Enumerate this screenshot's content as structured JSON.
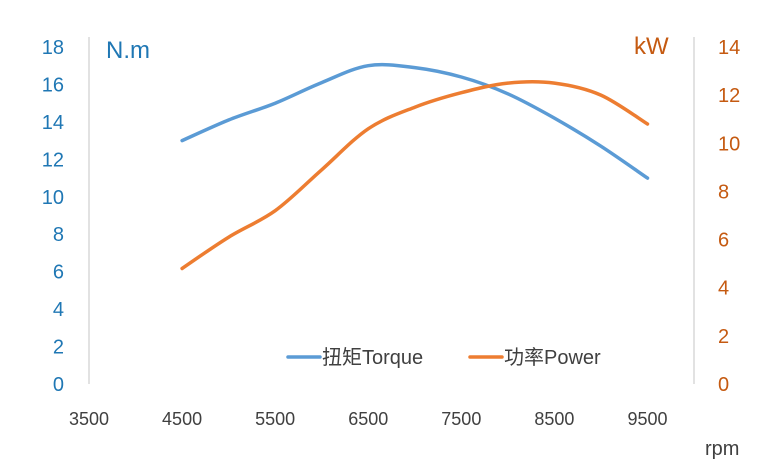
{
  "chart_data": {
    "type": "line",
    "x": [
      4500,
      5000,
      5500,
      6000,
      6500,
      7000,
      7500,
      8000,
      8500,
      9000,
      9500
    ],
    "xlim": [
      3500,
      10000
    ],
    "x_ticks": [
      3500,
      4500,
      5500,
      6500,
      7500,
      8500,
      9500
    ],
    "xlabel": "rpm",
    "y_left": {
      "label": "N.m",
      "ylim": [
        0,
        18
      ],
      "ticks": [
        0,
        2,
        4,
        6,
        8,
        10,
        12,
        14,
        16,
        18
      ],
      "color": "#1f77b4"
    },
    "y_right": {
      "label": "kW",
      "ylim": [
        0,
        14
      ],
      "ticks": [
        0,
        2,
        4,
        6,
        8,
        10,
        12,
        14
      ],
      "color": "#c55a11"
    },
    "series": [
      {
        "name": "扭矩Torque",
        "axis": "left",
        "color": "#5b9bd5",
        "values": [
          13.0,
          14.1,
          15.0,
          16.1,
          17.0,
          16.9,
          16.4,
          15.5,
          14.2,
          12.7,
          11.0
        ]
      },
      {
        "name": "功率Power",
        "axis": "right",
        "color": "#ed7d31",
        "values": [
          4.8,
          6.1,
          7.2,
          8.9,
          10.6,
          11.5,
          12.1,
          12.5,
          12.5,
          12.0,
          10.8
        ]
      }
    ],
    "legend": "bottom-right",
    "grid": false
  }
}
